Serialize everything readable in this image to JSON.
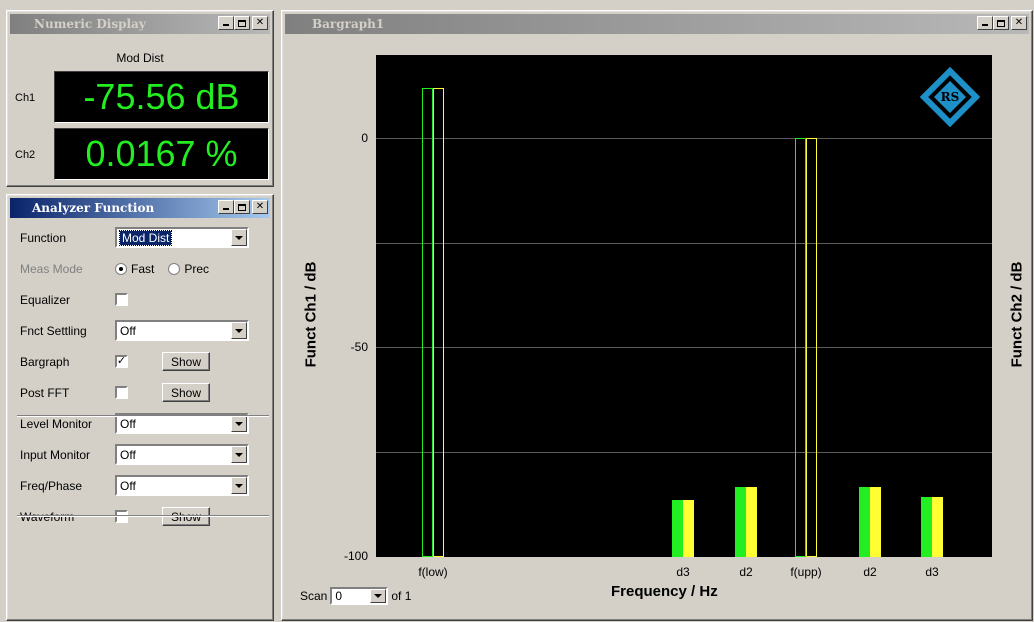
{
  "numeric_display": {
    "title": "Numeric Display",
    "function_name": "Mod Dist",
    "channels": [
      {
        "label": "Ch1",
        "value": "-75.56 dB"
      },
      {
        "label": "Ch2",
        "value": "0.0167 %"
      }
    ],
    "value_color": "#22ee22"
  },
  "analyzer_function": {
    "title": "Analyzer Function",
    "rows": {
      "function": {
        "label": "Function",
        "value": "Mod Dist"
      },
      "meas_mode": {
        "label": "Meas Mode",
        "options": [
          "Fast",
          "Prec"
        ],
        "selected": "Fast"
      },
      "equalizer": {
        "label": "Equalizer",
        "checked": false
      },
      "fnct_settling": {
        "label": "Fnct Settling",
        "value": "Off"
      },
      "bargraph": {
        "label": "Bargraph",
        "checked": true,
        "button": "Show"
      },
      "post_fft": {
        "label": "Post FFT",
        "checked": false,
        "button": "Show"
      },
      "level_monitor": {
        "label": "Level Monitor",
        "value": "Off"
      },
      "input_monitor": {
        "label": "Input Monitor",
        "value": "Off"
      },
      "freq_phase": {
        "label": "Freq/Phase",
        "value": "Off"
      },
      "waveform": {
        "label": "Waveform",
        "checked": false,
        "button": "Show"
      }
    }
  },
  "bargraph": {
    "title": "Bargraph1",
    "scan_label": "Scan",
    "scan_value": "0",
    "scan_of": "of 1",
    "colors": {
      "ch1": "#22ee22",
      "ch2": "#ffff33",
      "background": "#000000",
      "grid": "#5a5a5a"
    }
  },
  "chart_data": {
    "type": "bar",
    "xlabel": "Frequency / Hz",
    "ylabel": "Funct Ch1 / dB",
    "ylabel_right": "Funct Ch2 / dB",
    "ylim": [
      -100,
      20
    ],
    "yticks": [
      0,
      -50,
      -100
    ],
    "grid": true,
    "categories": [
      "f(low)",
      "d3",
      "d2",
      "f(upp)",
      "d2",
      "d3"
    ],
    "series": [
      {
        "values": [
          12,
          -86.5,
          -83.5,
          0,
          -83.5,
          -86
        ]
      },
      {
        "values": [
          12,
          -86.5,
          -83.5,
          0,
          -83.5,
          -86
        ]
      }
    ],
    "bar_style": [
      "outline",
      "filled",
      "filled",
      "outline",
      "filled",
      "filled"
    ]
  }
}
